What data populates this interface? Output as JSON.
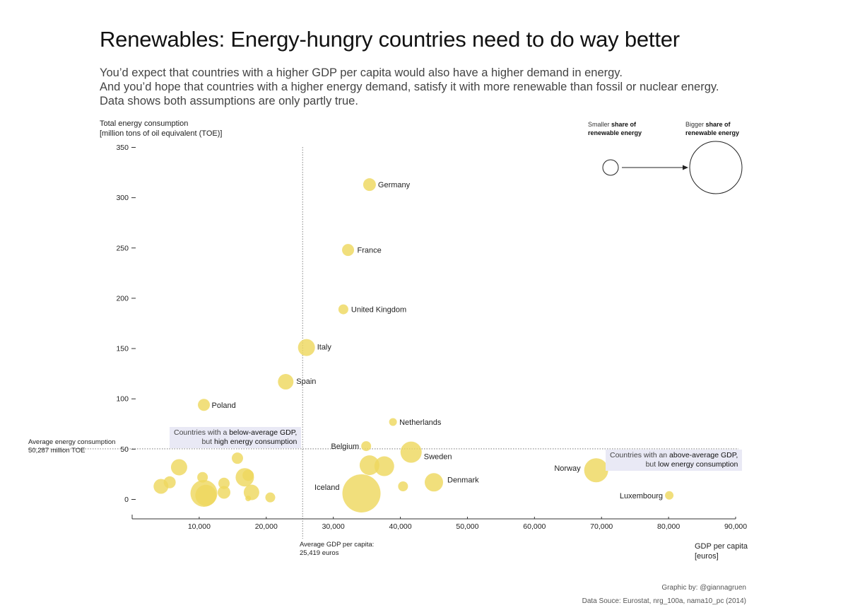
{
  "title": "Renewables: Energy-hungry countries need to do way better",
  "subtitle": [
    "You’d expect that countries with a higher GDP per capita would also have a higher demand in energy.",
    "And you’d hope that countries with a higher energy demand, satisfy it with more renewable than fossil or nuclear energy.",
    "Data shows both assumptions are only partly true."
  ],
  "chart_data": {
    "type": "scatter",
    "title": "Renewables: Energy-hungry countries need to do way better",
    "xlabel": [
      "GDP per capita",
      "[euros]"
    ],
    "ylabel": [
      "Total energy consumption",
      "[million tons of oil equivalent (TOE)]"
    ],
    "xlim": [
      0,
      90000
    ],
    "ylim": [
      -20,
      350
    ],
    "xticks": [
      10000,
      20000,
      30000,
      40000,
      50000,
      60000,
      70000,
      80000,
      90000
    ],
    "xtick_labels": [
      "10,000",
      "20,000",
      "30,000",
      "40,000",
      "50,000",
      "60,000",
      "70,000",
      "80,000",
      "90,000"
    ],
    "yticks": [
      0,
      50,
      100,
      150,
      200,
      250,
      300,
      350
    ],
    "ytick_labels": [
      "0",
      "50",
      "100",
      "150",
      "200",
      "250",
      "300",
      "350"
    ],
    "bubble_color": "#eed85f",
    "size_meaning": "share of renewable energy",
    "points": [
      {
        "label": "Germany",
        "x": 35400,
        "y": 313,
        "r": 9
      },
      {
        "label": "France",
        "x": 32200,
        "y": 248,
        "r": 8.5
      },
      {
        "label": "United Kingdom",
        "x": 31500,
        "y": 189,
        "r": 7
      },
      {
        "label": "Italy",
        "x": 26000,
        "y": 151,
        "r": 12
      },
      {
        "label": "Spain",
        "x": 22900,
        "y": 117,
        "r": 11
      },
      {
        "label": "Poland",
        "x": 10700,
        "y": 94,
        "r": 8.5
      },
      {
        "label": "Netherlands",
        "x": 38900,
        "y": 77,
        "r": 5.5
      },
      {
        "label": "Belgium",
        "x": 34900,
        "y": 53,
        "r": 7
      },
      {
        "label": "Sweden",
        "x": 41600,
        "y": 47,
        "r": 15
      },
      {
        "label": "Norway",
        "x": 69200,
        "y": 29,
        "r": 17
      },
      {
        "label": "Denmark",
        "x": 45000,
        "y": 17,
        "r": 13
      },
      {
        "label": "Iceland",
        "x": 34200,
        "y": 6,
        "r": 27
      },
      {
        "label": "Luxembourg",
        "x": 80100,
        "y": 4,
        "r": 6
      },
      {
        "label": "",
        "x": 35400,
        "y": 34,
        "r": 14
      },
      {
        "label": "",
        "x": 37600,
        "y": 33,
        "r": 14
      },
      {
        "label": "",
        "x": 40400,
        "y": 13,
        "r": 7
      },
      {
        "label": "",
        "x": 7000,
        "y": 32,
        "r": 11.5
      },
      {
        "label": "",
        "x": 5600,
        "y": 17,
        "r": 8.5
      },
      {
        "label": "",
        "x": 4300,
        "y": 13,
        "r": 10.5
      },
      {
        "label": "",
        "x": 10500,
        "y": 22,
        "r": 7.5
      },
      {
        "label": "",
        "x": 10700,
        "y": 6,
        "r": 19
      },
      {
        "label": "",
        "x": 11000,
        "y": 4,
        "r": 15
      },
      {
        "label": "",
        "x": 13700,
        "y": 16,
        "r": 8
      },
      {
        "label": "",
        "x": 13700,
        "y": 7,
        "r": 9
      },
      {
        "label": "",
        "x": 15700,
        "y": 41,
        "r": 8
      },
      {
        "label": "",
        "x": 16800,
        "y": 22,
        "r": 13
      },
      {
        "label": "",
        "x": 17300,
        "y": 24,
        "r": 8
      },
      {
        "label": "",
        "x": 17800,
        "y": 7,
        "r": 11
      },
      {
        "label": "",
        "x": 17300,
        "y": 1,
        "r": 4
      },
      {
        "label": "",
        "x": 20600,
        "y": 2,
        "r": 7
      }
    ],
    "reference_lines": {
      "avg_gdp": 25419,
      "avg_energy": 50287
    }
  },
  "annotations": {
    "avg_energy": [
      "Average energy consumption",
      "50,287 million TOE"
    ],
    "avg_gdp": [
      "Average GDP per capita:",
      "25,419 euros"
    ],
    "callout_left": {
      "prefix": "Countries with a ",
      "bold": "below-average GDP,",
      "line2_prefix": "but ",
      "line2_bold": "high energy consumption"
    },
    "callout_right": {
      "prefix": "Countries with an ",
      "bold": "above-average GDP,",
      "line2_prefix": "but ",
      "line2_bold": "low energy consumption"
    }
  },
  "legend": {
    "small_prefix": "Smaller ",
    "small_bold1": "share of",
    "small_bold2": "renewable energy",
    "big_prefix": "Bigger ",
    "big_bold1": "share of",
    "big_bold2": "renewable energy"
  },
  "credits": {
    "author": "Graphic by: @giannagruen",
    "source": "Data Souce: Eurostat, nrg_100a, nama10_pc (2014)"
  }
}
